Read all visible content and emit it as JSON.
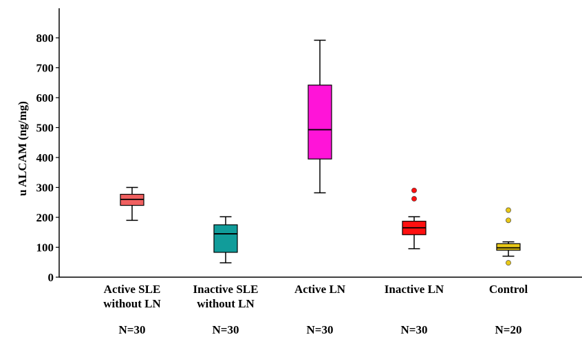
{
  "chart_data": {
    "type": "box",
    "ylabel": "u ALCAM (ng/mg)",
    "xlabel": "",
    "title": "",
    "ylim": [
      0,
      800
    ],
    "yticks": [
      0,
      100,
      200,
      300,
      400,
      500,
      600,
      700,
      800
    ],
    "grid": false,
    "categories": [
      {
        "lines": [
          "Active SLE",
          "without LN"
        ],
        "n_label": "N=30",
        "color": "#f06060",
        "box": {
          "whisker_low": 190,
          "q1": 240,
          "median": 260,
          "q3": 277,
          "whisker_high": 300
        },
        "outliers": []
      },
      {
        "lines": [
          "Inactive SLE",
          "without LN"
        ],
        "n_label": "N=30",
        "color": "#119c9a",
        "box": {
          "whisker_low": 48,
          "q1": 83,
          "median": 145,
          "q3": 175,
          "whisker_high": 202
        },
        "outliers": []
      },
      {
        "lines": [
          "Active LN"
        ],
        "n_label": "N=30",
        "color": "#ff14d8",
        "box": {
          "whisker_low": 282,
          "q1": 395,
          "median": 493,
          "q3": 642,
          "whisker_high": 792
        },
        "outliers": []
      },
      {
        "lines": [
          "Inactive LN"
        ],
        "n_label": "N=30",
        "color": "#ff1010",
        "box": {
          "whisker_low": 95,
          "q1": 142,
          "median": 165,
          "q3": 187,
          "whisker_high": 202
        },
        "outliers": [
          262,
          290
        ]
      },
      {
        "lines": [
          "Control"
        ],
        "n_label": "N=20",
        "color": "#e8c818",
        "box": {
          "whisker_low": 70,
          "q1": 90,
          "median": 98,
          "q3": 112,
          "whisker_high": 118
        },
        "outliers": [
          48,
          190,
          224
        ]
      }
    ]
  }
}
